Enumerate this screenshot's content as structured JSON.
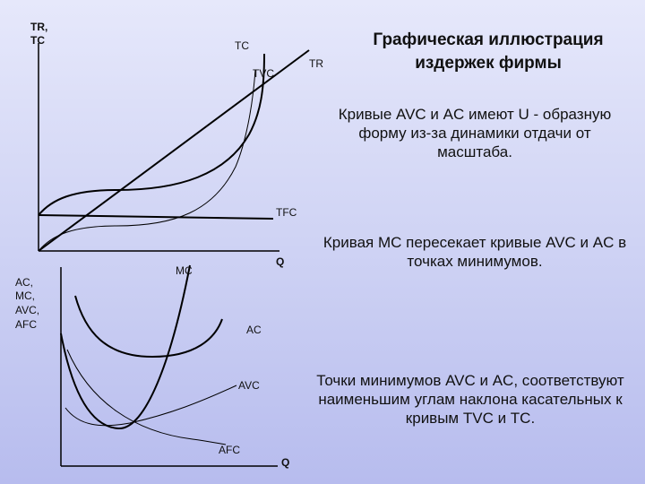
{
  "title": "Графическая иллюстрация издержек фирмы",
  "notes": [
    "Кривые AVC и AC имеют U - образную форму из-за динамики отдачи от масштаба.",
    "Кривая MC пересекает кривые AVC и AC в точках минимумов.",
    "Точки минимумов AVC и AC, соответствуют наименьшим углам наклона касательных к кривым TVC и TC."
  ],
  "top_graph": {
    "y_axis_label": [
      "TR,",
      "TC"
    ],
    "x_axis_label": "Q",
    "curves": {
      "tc": "TC",
      "tvc": "TVC",
      "tr": "TR",
      "tfc": "TFC"
    }
  },
  "bottom_graph": {
    "y_axis_label": [
      "AC,",
      "MC,",
      "AVC,",
      "AFC"
    ],
    "x_axis_label": "Q",
    "curves": {
      "mc": "MC",
      "ac": "AC",
      "avc": "AVC",
      "afc": "AFC"
    }
  },
  "colors": {
    "curve": "#000000",
    "background_top": "#e6e8fb",
    "background_bottom": "#b7bcee"
  }
}
